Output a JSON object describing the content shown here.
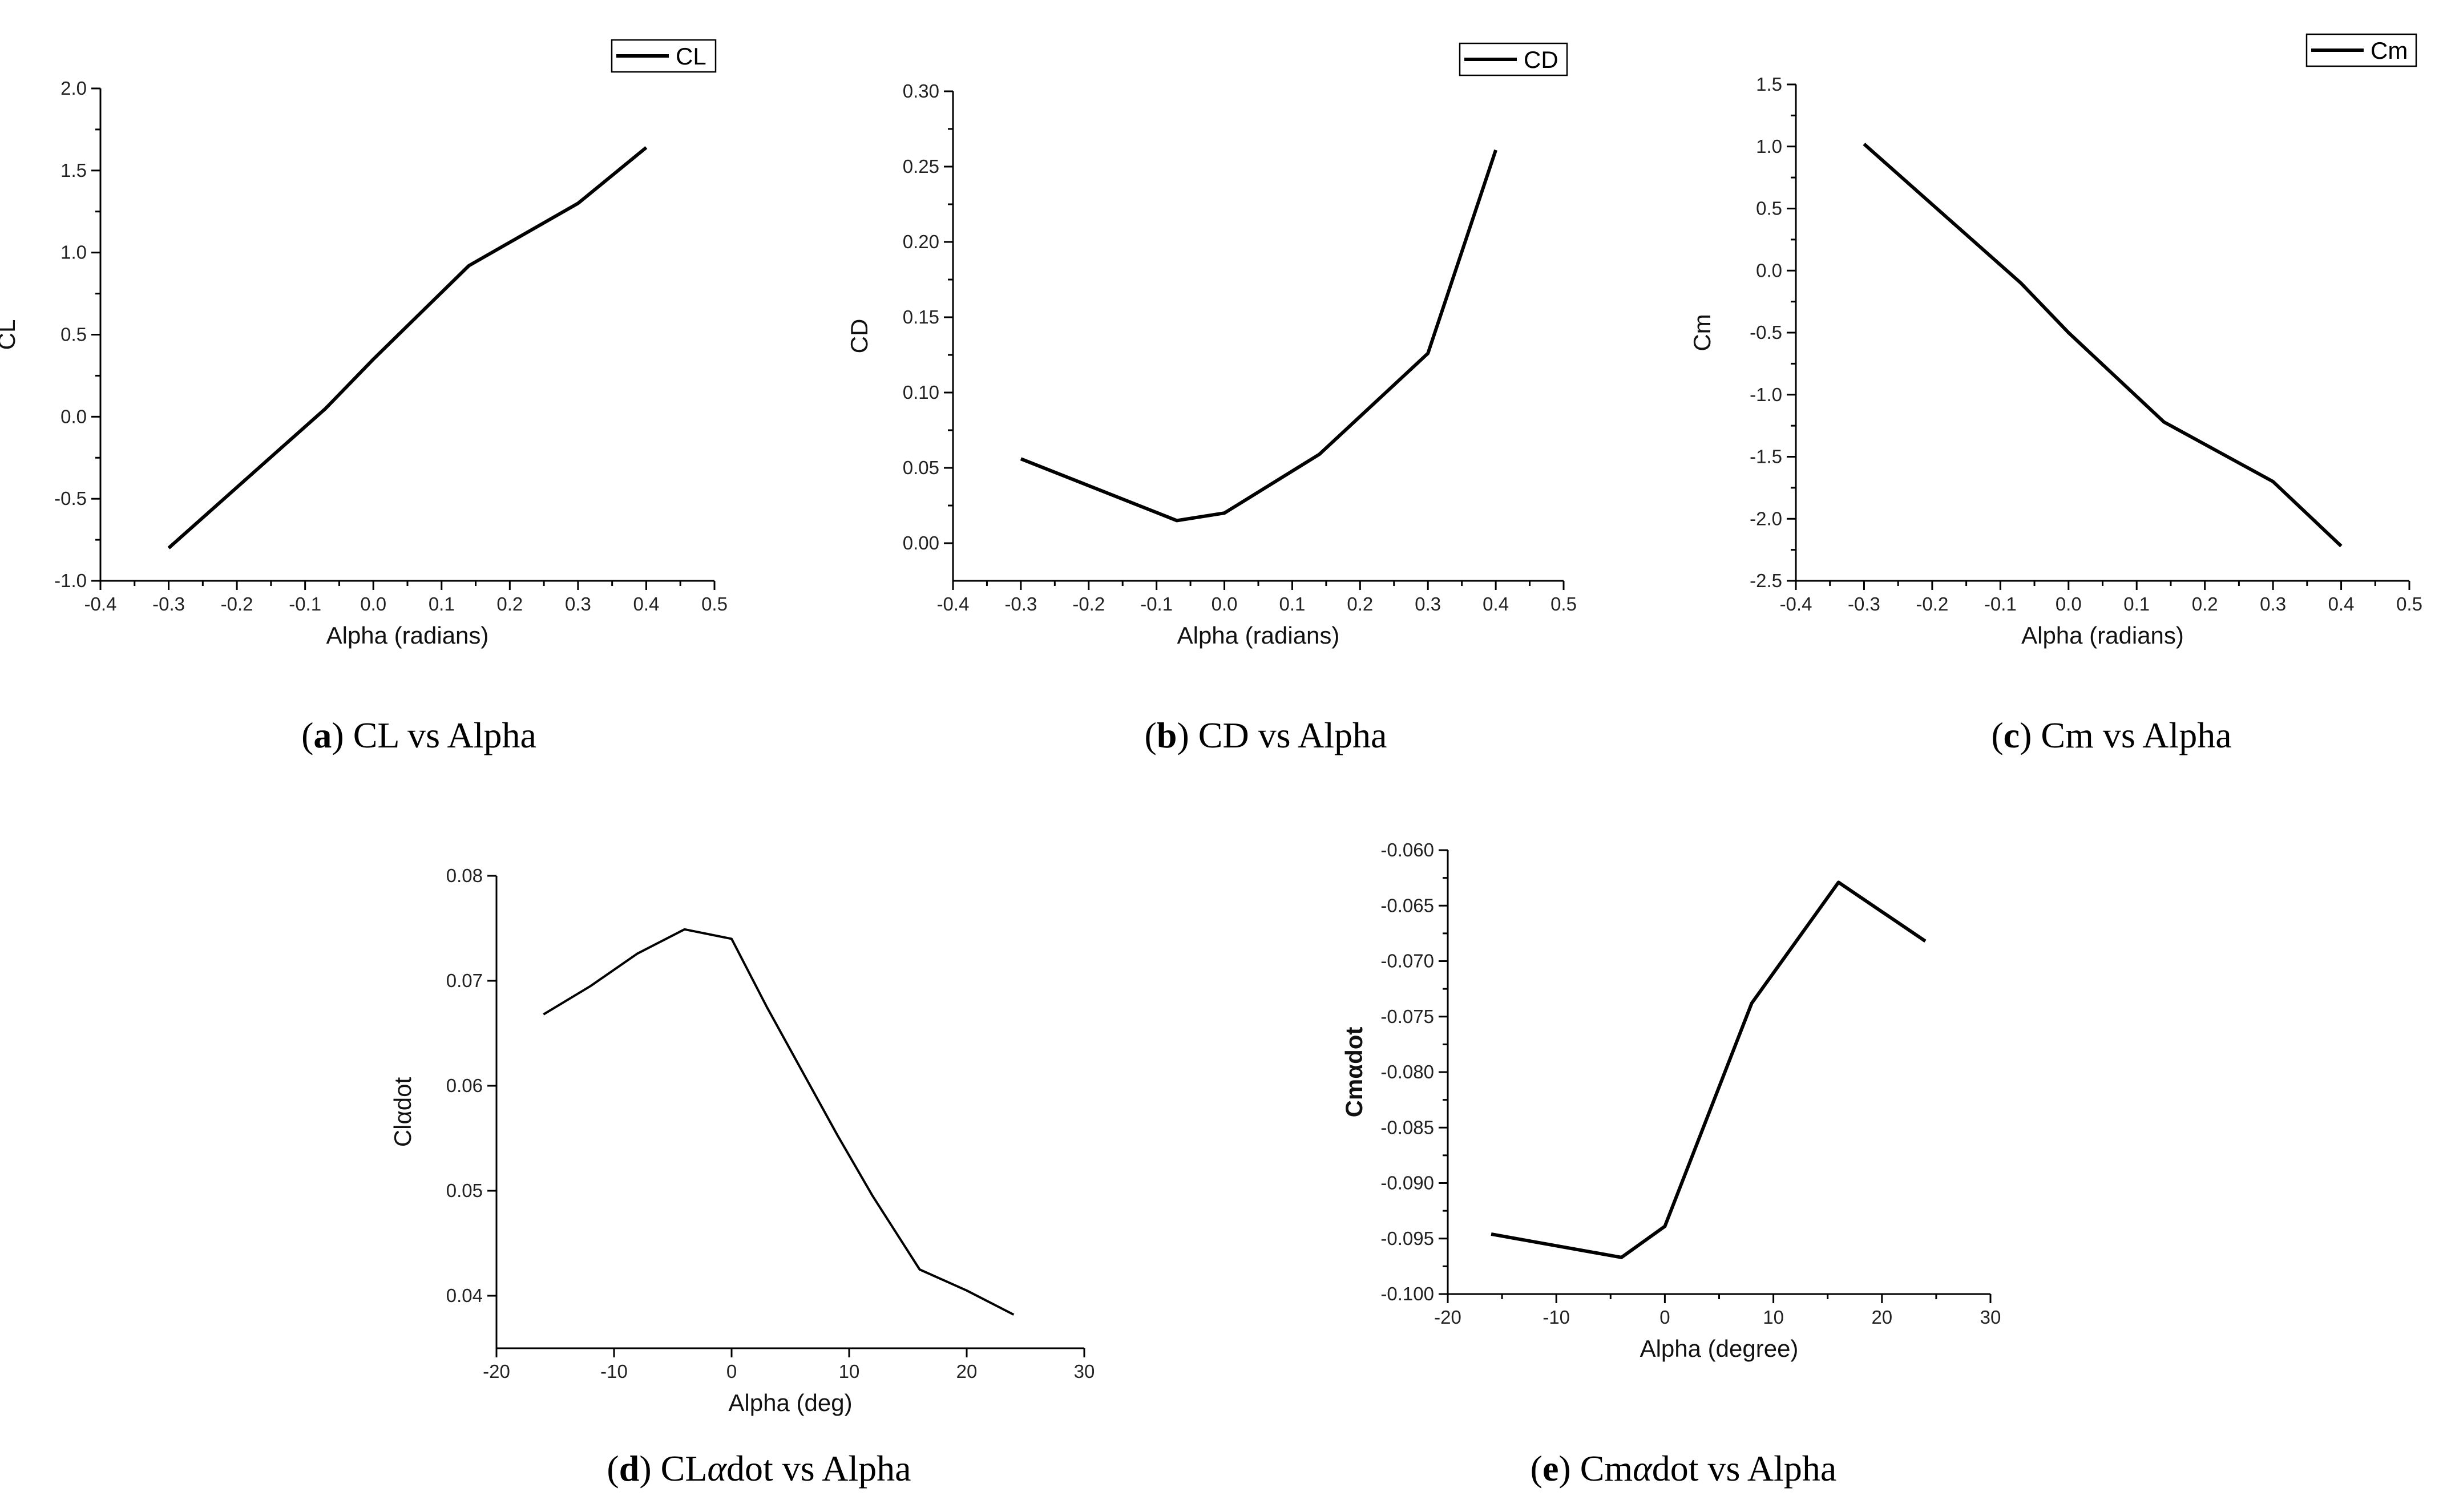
{
  "chart_data": [
    {
      "id": "a",
      "type": "line",
      "caption": {
        "letter": "a",
        "text": "CL vs Alpha"
      },
      "legend": "CL",
      "xlabel": "Alpha (radians)",
      "ylabel": "CL",
      "xlim": [
        -0.4,
        0.5
      ],
      "ylim": [
        -1.0,
        2.0
      ],
      "xticks": [
        "-0.4",
        "-0.3",
        "-0.2",
        "-0.1",
        "0.0",
        "0.1",
        "0.2",
        "0.3",
        "0.4",
        "0.5"
      ],
      "yticks": [
        "-1.0",
        "-0.5",
        "0.0",
        "0.5",
        "1.0",
        "1.5",
        "2.0"
      ],
      "x": [
        -0.3,
        -0.07,
        0.0,
        0.14,
        0.3,
        0.4
      ],
      "y": [
        -0.8,
        0.05,
        0.35,
        0.92,
        1.3,
        1.64
      ]
    },
    {
      "id": "b",
      "type": "line",
      "caption": {
        "letter": "b",
        "text": "CD vs Alpha"
      },
      "legend": "CD",
      "xlabel": "Alpha (radians)",
      "ylabel": "CD",
      "xlim": [
        -0.4,
        0.5
      ],
      "ylim": [
        -0.025,
        0.3
      ],
      "xticks": [
        "-0.4",
        "-0.3",
        "-0.2",
        "-0.1",
        "0.0",
        "0.1",
        "0.2",
        "0.3",
        "0.4",
        "0.5"
      ],
      "yticks": [
        "0.00",
        "0.05",
        "0.10",
        "0.15",
        "0.20",
        "0.25",
        "0.30"
      ],
      "x": [
        -0.3,
        -0.07,
        0.0,
        0.14,
        0.3,
        0.4
      ],
      "y": [
        0.056,
        0.015,
        0.02,
        0.059,
        0.126,
        0.261
      ]
    },
    {
      "id": "c",
      "type": "line",
      "caption": {
        "letter": "c",
        "text": "Cm vs Alpha"
      },
      "legend": "Cm",
      "xlabel": "Alpha (radians)",
      "ylabel": "Cm",
      "xlim": [
        -0.4,
        0.5
      ],
      "ylim": [
        -2.5,
        1.5
      ],
      "xticks": [
        "-0.4",
        "-0.3",
        "-0.2",
        "-0.1",
        "0.0",
        "0.1",
        "0.2",
        "0.3",
        "0.4",
        "0.5"
      ],
      "yticks": [
        "-2.5",
        "-2.0",
        "-1.5",
        "-1.0",
        "-0.5",
        "0.0",
        "0.5",
        "1.0",
        "1.5"
      ],
      "x": [
        -0.3,
        -0.07,
        0.0,
        0.14,
        0.3,
        0.4
      ],
      "y": [
        1.02,
        -0.1,
        -0.5,
        -1.22,
        -1.7,
        -2.22
      ]
    },
    {
      "id": "d",
      "type": "line",
      "caption": {
        "letter": "d",
        "text_before": "CL",
        "symbol": "α",
        "text_after": "dot vs Alpha"
      },
      "legend": "",
      "xlabel": "Alpha (deg)",
      "ylabel": "Clαdot",
      "xlim": [
        -20,
        30
      ],
      "ylim": [
        0.035,
        0.08
      ],
      "xticks": [
        "-20",
        "-10",
        "0",
        "10",
        "20",
        "30"
      ],
      "yticks": [
        "0.04",
        "0.05",
        "0.06",
        "0.07",
        "0.08"
      ],
      "x": [
        -16,
        -12,
        -8,
        -4,
        0,
        3,
        9,
        12,
        16,
        20,
        24
      ],
      "y": [
        0.0668,
        0.0695,
        0.0726,
        0.0749,
        0.074,
        0.0675,
        0.0553,
        0.0495,
        0.0425,
        0.0405,
        0.0382
      ]
    },
    {
      "id": "e",
      "type": "line",
      "caption": {
        "letter": "e",
        "text_before": "Cm",
        "symbol": "α",
        "text_after": "dot vs Alpha"
      },
      "legend": "",
      "xlabel": "Alpha (degree)",
      "ylabel": "Cmαdot",
      "xlim": [
        -20,
        30
      ],
      "ylim": [
        -0.1,
        -0.06
      ],
      "xticks": [
        "-20",
        "-10",
        "0",
        "10",
        "20",
        "30"
      ],
      "yticks": [
        "-0.100",
        "-0.095",
        "-0.090",
        "-0.085",
        "-0.080",
        "-0.075",
        "-0.070",
        "-0.065",
        "-0.060"
      ],
      "x": [
        -16,
        -4,
        0,
        8,
        16,
        24
      ],
      "y": [
        -0.0946,
        -0.0967,
        -0.0939,
        -0.0738,
        -0.0629,
        -0.0682
      ]
    }
  ]
}
